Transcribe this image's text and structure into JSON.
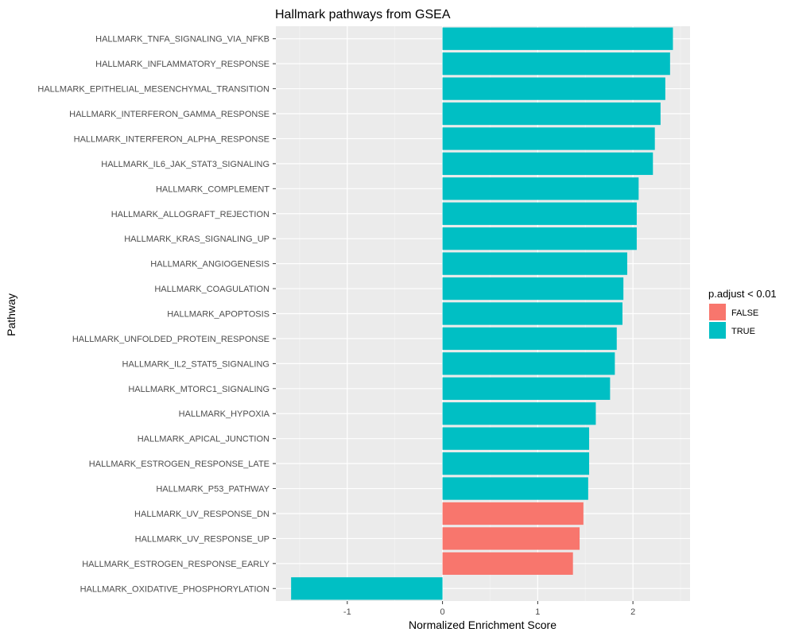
{
  "chart_data": {
    "type": "bar",
    "orientation": "horizontal",
    "title": "Hallmark pathways from GSEA",
    "xlabel": "Normalized Enrichment Score",
    "ylabel": "Pathway",
    "xlim": [
      -1.75,
      2.6
    ],
    "xticks": [
      -1,
      0,
      1,
      2
    ],
    "grid": true,
    "legend": {
      "title": "p.adjust < 0.01",
      "position": "right",
      "entries": [
        {
          "label": "FALSE",
          "color": "#F8766D"
        },
        {
          "label": "TRUE",
          "color": "#00BFC4"
        }
      ]
    },
    "categories": [
      "HALLMARK_TNFA_SIGNALING_VIA_NFKB",
      "HALLMARK_INFLAMMATORY_RESPONSE",
      "HALLMARK_EPITHELIAL_MESENCHYMAL_TRANSITION",
      "HALLMARK_INTERFERON_GAMMA_RESPONSE",
      "HALLMARK_INTERFERON_ALPHA_RESPONSE",
      "HALLMARK_IL6_JAK_STAT3_SIGNALING",
      "HALLMARK_COMPLEMENT",
      "HALLMARK_ALLOGRAFT_REJECTION",
      "HALLMARK_KRAS_SIGNALING_UP",
      "HALLMARK_ANGIOGENESIS",
      "HALLMARK_COAGULATION",
      "HALLMARK_APOPTOSIS",
      "HALLMARK_UNFOLDED_PROTEIN_RESPONSE",
      "HALLMARK_IL2_STAT5_SIGNALING",
      "HALLMARK_MTORC1_SIGNALING",
      "HALLMARK_HYPOXIA",
      "HALLMARK_APICAL_JUNCTION",
      "HALLMARK_ESTROGEN_RESPONSE_LATE",
      "HALLMARK_P53_PATHWAY",
      "HALLMARK_UV_RESPONSE_DN",
      "HALLMARK_UV_RESPONSE_UP",
      "HALLMARK_ESTROGEN_RESPONSE_EARLY",
      "HALLMARK_OXIDATIVE_PHOSPHORYLATION"
    ],
    "values": [
      2.42,
      2.39,
      2.34,
      2.29,
      2.23,
      2.21,
      2.06,
      2.04,
      2.04,
      1.94,
      1.9,
      1.89,
      1.83,
      1.81,
      1.76,
      1.61,
      1.54,
      1.54,
      1.53,
      1.48,
      1.44,
      1.37,
      -1.59
    ],
    "significant": [
      true,
      true,
      true,
      true,
      true,
      true,
      true,
      true,
      true,
      true,
      true,
      true,
      true,
      true,
      true,
      true,
      true,
      true,
      true,
      false,
      false,
      false,
      true
    ]
  }
}
